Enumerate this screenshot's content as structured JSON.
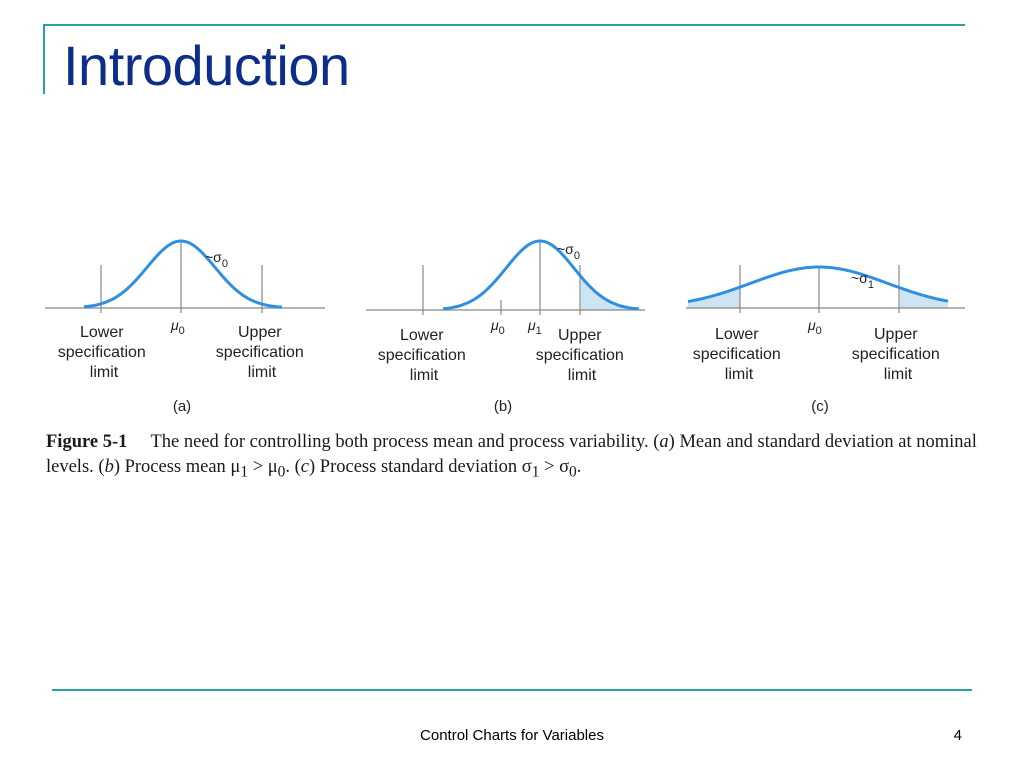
{
  "slide": {
    "title": "Introduction",
    "footer": "Control Charts for Variables",
    "page_number": "4"
  },
  "colors": {
    "accent_line": "#27a0a8",
    "title": "#0c2e8a",
    "curve": "#2f8fe0",
    "shade": "#cde4f5"
  },
  "figure": {
    "panels": [
      {
        "id": "a",
        "label": "(a)",
        "lower_spec": [
          "Lower",
          "specification",
          "limit"
        ],
        "upper_spec": [
          "Upper",
          "specification",
          "limit"
        ],
        "mean_label": "μ",
        "mean_sub": "0",
        "sigma_label": "~σ",
        "sigma_sub": "0"
      },
      {
        "id": "b",
        "label": "(b)",
        "lower_spec": [
          "Lower",
          "specification",
          "limit"
        ],
        "upper_spec": [
          "Upper",
          "specification",
          "limit"
        ],
        "mean0_label": "μ",
        "mean0_sub": "0",
        "mean_label": "μ",
        "mean_sub": "1",
        "sigma_label": "~σ",
        "sigma_sub": "0"
      },
      {
        "id": "c",
        "label": "(c)",
        "lower_spec": [
          "Lower",
          "specification",
          "limit"
        ],
        "upper_spec": [
          "Upper",
          "specification",
          "limit"
        ],
        "mean_label": "μ",
        "mean_sub": "0",
        "sigma_label": "~σ",
        "sigma_sub": "1"
      }
    ],
    "caption": {
      "fig_label": "Figure 5-1",
      "text_1": "The need for controlling both process mean and process variability. (",
      "a": "a",
      "text_2": ") Mean and standard deviation at nominal levels. (",
      "b": "b",
      "text_3": ") Process mean μ",
      "sub1": "1",
      "text_4": " > μ",
      "sub0": "0",
      "text_5": ". (",
      "c": "c",
      "text_6": ") Process standard deviation σ",
      "sub1b": "1",
      "text_7": " > σ",
      "sub0b": "0",
      "text_8": "."
    }
  }
}
